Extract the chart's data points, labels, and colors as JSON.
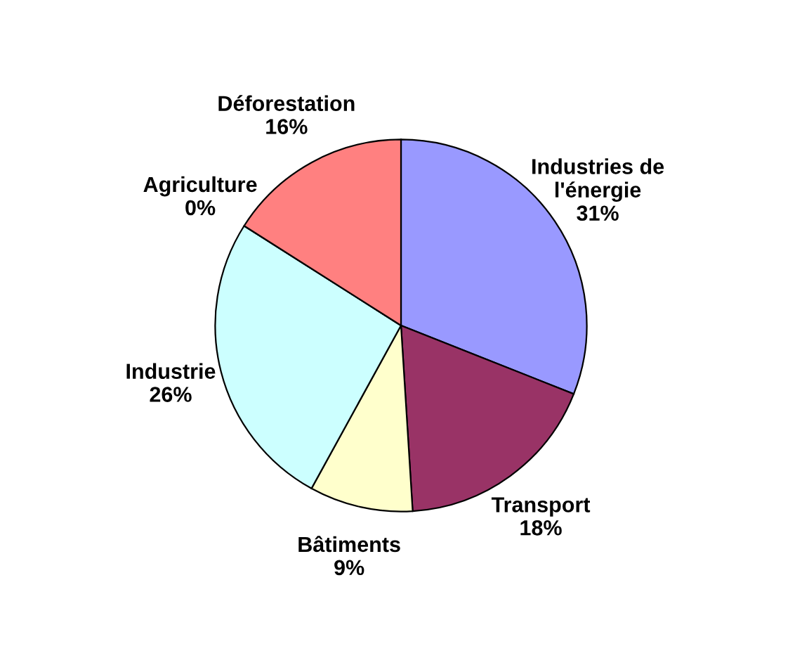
{
  "chart_data": {
    "type": "pie",
    "categories": [
      "Industries de\nl'énergie",
      "Transport",
      "Bâtiments",
      "Industrie",
      "Agriculture",
      "Déforestation"
    ],
    "values": [
      31,
      18,
      9,
      26,
      0,
      16
    ],
    "value_labels": [
      "31%",
      "18%",
      "9%",
      "26%",
      "0%",
      "16%"
    ],
    "colors": [
      "#9999ff",
      "#993366",
      "#ffffcc",
      "#ccffff",
      "#660066",
      "#ff8080"
    ],
    "legend": false
  }
}
